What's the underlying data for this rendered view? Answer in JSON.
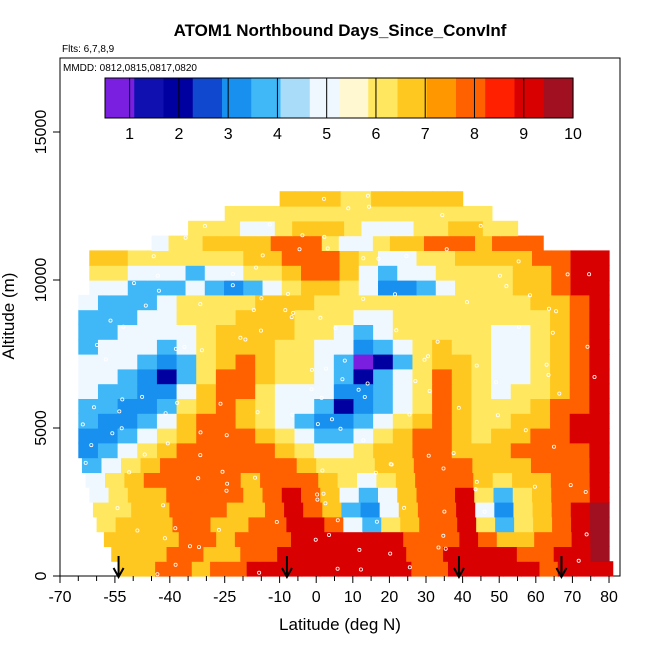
{
  "chart_data": {
    "type": "heatmap",
    "title": "ATOM1 Northbound Days_Since_ConvInf",
    "flights_label": "Flts: 6,7,8,9",
    "dates_label": "MMDD: 0812,0815,0817,0820",
    "xlabel": "Latitude (deg N)",
    "ylabel": "Altitude (m)",
    "xlim": [
      -70,
      83
    ],
    "ylim": [
      0,
      17500
    ],
    "x_ticks": [
      -70,
      -55,
      -40,
      -25,
      -10,
      0,
      10,
      20,
      30,
      40,
      50,
      60,
      70,
      80
    ],
    "x_tick_labels": [
      "-70",
      "-55",
      "-40",
      "-25",
      "-10",
      "0",
      "10",
      "20",
      "30",
      "40",
      "50",
      "60",
      "70",
      "80"
    ],
    "x_minor_ticks": [
      -65,
      -60,
      -50,
      -45,
      -35,
      -30,
      -20,
      -15,
      -5,
      5,
      15,
      25,
      35,
      45,
      55,
      65,
      75
    ],
    "y_ticks": [
      0,
      5000,
      10000,
      15000
    ],
    "y_tick_labels": [
      "0",
      "5000",
      "10000",
      "15000"
    ],
    "colorbar": {
      "range": [
        0.5,
        10
      ],
      "ticks": [
        1,
        2,
        3,
        4,
        5,
        6,
        7,
        8,
        9,
        10
      ],
      "tick_labels": [
        "1",
        "2",
        "3",
        "4",
        "5",
        "6",
        "7",
        "8",
        "9",
        "10"
      ],
      "colors": [
        "#7a1fe0",
        "#1010b0",
        "#0000a0",
        "#1048d0",
        "#1890f0",
        "#40b8f8",
        "#a8dcf8",
        "#f0f8ff",
        "#fff8d0",
        "#ffe860",
        "#ffc820",
        "#ff9800",
        "#ff6000",
        "#ff2000",
        "#d80000",
        "#a01020"
      ]
    },
    "profile_markers_lat": [
      -54,
      -8,
      39,
      67
    ],
    "altitude_bins_m": [
      500,
      1000,
      1500,
      2000,
      2500,
      3000,
      3500,
      4000,
      4500,
      5000,
      5500,
      6000,
      6500,
      7000,
      7500,
      8000,
      8500,
      9000,
      9500,
      10000,
      10500,
      11000,
      11500,
      12000,
      12500,
      13000
    ],
    "rows": [
      {
        "alt": 500,
        "lat_range": [
          -54,
          81
        ],
        "values": [
          7,
          7,
          8,
          8,
          7,
          8,
          8,
          9,
          9,
          9,
          9,
          9,
          9,
          9,
          9,
          9,
          8,
          8,
          9,
          9,
          9,
          9,
          9,
          8,
          9,
          9,
          9
        ]
      },
      {
        "alt": 1000,
        "lat_range": [
          -56,
          80
        ],
        "values": [
          7,
          7,
          7,
          8,
          8,
          7,
          7,
          8,
          8,
          9,
          9,
          9,
          9,
          9,
          9,
          9,
          8,
          8,
          9,
          9,
          9,
          9,
          8,
          8,
          9,
          9,
          10
        ]
      },
      {
        "alt": 1500,
        "lat_range": [
          -58,
          80
        ],
        "values": [
          7,
          7,
          7,
          7,
          8,
          8,
          7,
          8,
          8,
          8,
          9,
          9,
          9,
          9,
          9,
          9,
          8,
          8,
          8,
          9,
          8,
          7,
          7,
          8,
          8,
          9,
          10
        ]
      },
      {
        "alt": 2000,
        "lat_range": [
          -60,
          80
        ],
        "values": [
          6,
          7,
          7,
          7,
          8,
          8,
          7,
          7,
          8,
          8,
          9,
          9,
          8,
          5,
          4,
          6,
          7,
          8,
          8,
          9,
          6,
          4,
          6,
          7,
          8,
          9,
          10
        ]
      },
      {
        "alt": 2500,
        "lat_range": [
          -61,
          80
        ],
        "values": [
          6,
          6,
          7,
          7,
          8,
          8,
          8,
          7,
          7,
          8,
          9,
          8,
          7,
          4,
          3,
          5,
          7,
          8,
          8,
          9,
          5,
          3,
          6,
          7,
          8,
          9,
          10
        ]
      },
      {
        "alt": 3000,
        "lat_range": [
          -62,
          80
        ],
        "values": [
          5,
          6,
          7,
          7,
          8,
          8,
          8,
          8,
          7,
          8,
          9,
          8,
          7,
          5,
          4,
          5,
          7,
          8,
          8,
          9,
          6,
          4,
          6,
          7,
          8,
          8,
          9
        ]
      },
      {
        "alt": 3500,
        "lat_range": [
          -63,
          80
        ],
        "values": [
          5,
          6,
          7,
          8,
          8,
          8,
          8,
          8,
          7,
          8,
          8,
          8,
          7,
          6,
          5,
          6,
          7,
          8,
          8,
          8,
          7,
          6,
          7,
          7,
          8,
          8,
          9
        ]
      },
      {
        "alt": 4000,
        "lat_range": [
          -64,
          80
        ],
        "values": [
          4,
          5,
          6,
          7,
          8,
          8,
          8,
          8,
          8,
          8,
          8,
          7,
          6,
          6,
          6,
          7,
          7,
          8,
          8,
          8,
          7,
          7,
          7,
          8,
          8,
          8,
          9
        ]
      },
      {
        "alt": 4500,
        "lat_range": [
          -65,
          80
        ],
        "values": [
          3,
          4,
          5,
          6,
          7,
          8,
          8,
          8,
          8,
          8,
          7,
          6,
          5,
          5,
          6,
          7,
          7,
          8,
          8,
          7,
          7,
          7,
          8,
          8,
          8,
          8,
          9
        ]
      },
      {
        "alt": 5000,
        "lat_range": [
          -65,
          80
        ],
        "values": [
          3,
          3,
          4,
          5,
          6,
          7,
          8,
          8,
          8,
          7,
          6,
          5,
          4,
          4,
          5,
          6,
          7,
          8,
          8,
          7,
          6,
          7,
          7,
          8,
          8,
          9,
          9
        ]
      },
      {
        "alt": 5500,
        "lat_range": [
          -65,
          80
        ],
        "values": [
          4,
          3,
          3,
          4,
          5,
          7,
          8,
          8,
          7,
          6,
          5,
          4,
          3,
          3,
          4,
          5,
          6,
          7,
          8,
          7,
          6,
          6,
          7,
          7,
          8,
          9,
          9
        ]
      },
      {
        "alt": 6000,
        "lat_range": [
          -65,
          80
        ],
        "values": [
          4,
          4,
          3,
          3,
          4,
          6,
          7,
          8,
          7,
          6,
          5,
          5,
          4,
          2,
          3,
          4,
          5,
          6,
          8,
          7,
          6,
          6,
          6,
          7,
          8,
          8,
          9
        ]
      },
      {
        "alt": 6500,
        "lat_range": [
          -65,
          80
        ],
        "values": [
          5,
          4,
          4,
          3,
          3,
          5,
          7,
          8,
          8,
          6,
          5,
          5,
          5,
          3,
          3,
          4,
          5,
          6,
          8,
          7,
          6,
          5,
          6,
          6,
          7,
          8,
          9
        ]
      },
      {
        "alt": 7000,
        "lat_range": [
          -65,
          80
        ],
        "values": [
          5,
          5,
          4,
          3,
          2,
          4,
          6,
          8,
          8,
          7,
          6,
          6,
          5,
          4,
          2,
          4,
          5,
          6,
          8,
          7,
          6,
          5,
          5,
          6,
          7,
          8,
          9
        ]
      },
      {
        "alt": 7500,
        "lat_range": [
          -65,
          80
        ],
        "values": [
          5,
          5,
          5,
          4,
          3,
          4,
          6,
          7,
          8,
          7,
          6,
          6,
          5,
          4,
          1,
          2,
          4,
          6,
          7,
          7,
          6,
          5,
          5,
          6,
          7,
          8,
          9
        ]
      },
      {
        "alt": 8000,
        "lat_range": [
          -65,
          80
        ],
        "values": [
          4,
          5,
          5,
          5,
          4,
          5,
          6,
          7,
          7,
          7,
          6,
          6,
          5,
          5,
          3,
          4,
          5,
          6,
          7,
          6,
          6,
          5,
          5,
          6,
          7,
          8,
          9
        ]
      },
      {
        "alt": 8500,
        "lat_range": [
          -65,
          80
        ],
        "values": [
          4,
          4,
          5,
          5,
          5,
          5,
          6,
          7,
          7,
          7,
          7,
          6,
          6,
          5,
          4,
          5,
          6,
          6,
          6,
          6,
          6,
          5,
          5,
          6,
          7,
          8,
          9
        ]
      },
      {
        "alt": 9000,
        "lat_range": [
          -65,
          80
        ],
        "values": [
          4,
          4,
          4,
          5,
          5,
          6,
          6,
          6,
          7,
          7,
          7,
          6,
          6,
          6,
          5,
          5,
          6,
          6,
          6,
          6,
          6,
          6,
          6,
          6,
          7,
          8,
          9
        ]
      },
      {
        "alt": 9500,
        "lat_range": [
          -65,
          80
        ],
        "values": [
          5,
          4,
          4,
          4,
          5,
          6,
          6,
          6,
          6,
          7,
          7,
          7,
          6,
          6,
          6,
          6,
          6,
          6,
          6,
          6,
          6,
          6,
          6,
          7,
          7,
          8,
          9
        ]
      },
      {
        "alt": 10000,
        "lat_range": [
          -62,
          80
        ],
        "values": [
          5,
          5,
          4,
          4,
          4,
          5,
          4,
          3,
          4,
          5,
          6,
          7,
          7,
          6,
          5,
          3,
          3,
          4,
          5,
          6,
          6,
          6,
          7,
          7,
          8,
          9,
          9
        ]
      },
      {
        "alt": 10500,
        "lat_range": [
          -62,
          80
        ],
        "values": [
          6,
          6,
          5,
          5,
          5,
          4,
          5,
          5,
          6,
          6,
          7,
          8,
          8,
          7,
          5,
          4,
          5,
          5,
          6,
          6,
          6,
          6,
          7,
          7,
          8,
          9,
          9
        ]
      },
      {
        "alt": 11000,
        "lat_range": [
          -62,
          80
        ],
        "values": [
          7,
          7,
          6,
          6,
          6,
          6,
          6,
          6,
          7,
          7,
          8,
          8,
          8,
          7,
          6,
          5,
          5,
          6,
          6,
          7,
          7,
          7,
          7,
          8,
          8,
          9,
          9
        ]
      },
      {
        "alt": 11500,
        "lat_range": [
          -45,
          62
        ],
        "values": [
          5,
          6,
          6,
          7,
          7,
          7,
          7,
          8,
          8,
          8,
          6,
          5,
          5,
          6,
          7,
          7,
          8,
          8,
          8,
          7,
          8,
          8,
          8
        ]
      },
      {
        "alt": 12000,
        "lat_range": [
          -35,
          55
        ],
        "values": [
          6,
          6,
          6,
          5,
          5,
          6,
          7,
          7,
          7,
          6,
          5,
          5,
          5,
          6,
          6,
          7,
          7,
          6,
          6
        ]
      },
      {
        "alt": 12500,
        "lat_range": [
          -25,
          48
        ],
        "values": [
          6,
          6,
          6,
          6,
          6,
          6,
          6,
          6,
          6,
          6,
          6,
          6,
          6,
          6,
          6,
          6,
          6
        ]
      },
      {
        "alt": 13000,
        "lat_range": [
          -10,
          40
        ],
        "values": [
          7,
          7,
          7,
          7,
          6,
          6,
          7,
          7,
          7,
          7,
          7,
          7
        ]
      }
    ]
  }
}
